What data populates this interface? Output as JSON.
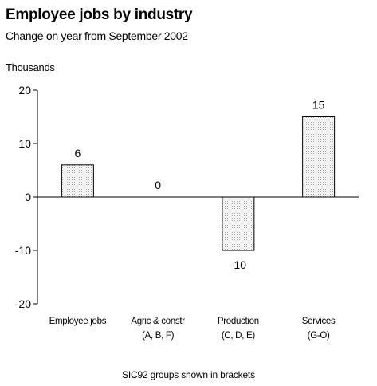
{
  "chart_data": {
    "type": "bar",
    "title": "Employee jobs by industry",
    "subtitle": "Change on year from September 2002",
    "ylabel": "Thousands",
    "xlabel": "",
    "ylim": [
      -20,
      20
    ],
    "yticks": [
      20,
      10,
      0,
      -10,
      -20
    ],
    "categories": [
      [
        "Employee jobs"
      ],
      [
        "Agric & constr",
        "(A, B, F)"
      ],
      [
        "Production",
        "(C, D, E)"
      ],
      [
        "Services",
        "(G-O)"
      ]
    ],
    "values": [
      6,
      0,
      -10,
      15
    ],
    "data_labels": [
      "6",
      "0",
      "-10",
      "15"
    ],
    "grid": false,
    "legend": "none",
    "bar_fill": "dotted-light-grey",
    "note": "SIC92 groups shown in brackets"
  }
}
